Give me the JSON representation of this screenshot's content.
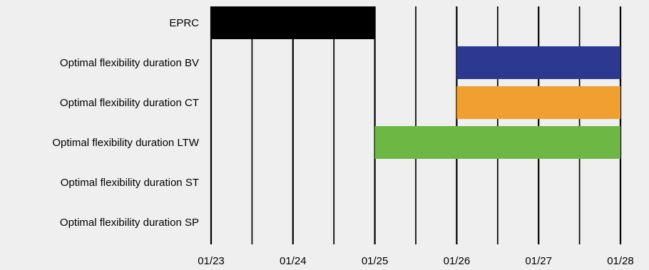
{
  "chart_data": {
    "type": "gantt",
    "title": "",
    "xlabel": "",
    "ylabel": "",
    "x_ticks": [
      "01/23",
      "01/24",
      "01/25",
      "01/26",
      "01/27",
      "01/28"
    ],
    "xlim": [
      "01/23",
      "01/28"
    ],
    "grid": "vertical half-day lines",
    "legend": "none",
    "rows": [
      {
        "label": "EPRC",
        "start": "01/23",
        "end": "01/25",
        "color": "#000000"
      },
      {
        "label": "Optimal flexibility duration BV",
        "start": "01/26",
        "end": "01/28",
        "color": "#2b3990"
      },
      {
        "label": "Optimal flexibility duration CT",
        "start": "01/26",
        "end": "01/28",
        "color": "#f0a030"
      },
      {
        "label": "Optimal flexibility duration LTW",
        "start": "01/25",
        "end": "01/28",
        "color": "#6db845"
      },
      {
        "label": "Optimal flexibility duration ST",
        "start": null,
        "end": null,
        "color": null
      },
      {
        "label": "Optimal flexibility duration SP",
        "start": null,
        "end": null,
        "color": null
      }
    ]
  }
}
